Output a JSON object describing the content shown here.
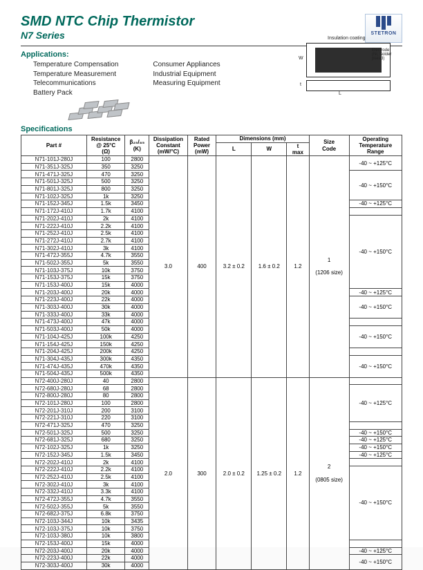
{
  "header": {
    "title": "SMD NTC Chip Thermistor",
    "subtitle": "N7 Series",
    "logo_text": "STETRON"
  },
  "applications": {
    "label": "Applications:",
    "col1": [
      "Temperature Compensation",
      "Temperature Measurement",
      "Telecommunications",
      "Battery Pack"
    ],
    "col2": [
      "Consumer Appliances",
      "Industrial Equipment",
      "Measuring Equipment"
    ]
  },
  "diagram": {
    "insulation": "Insulation coating",
    "electrode": "Electrode\n(Ni, Solder\nplated)",
    "L": "L",
    "W": "W",
    "t": "t"
  },
  "specs_label": "Specifications",
  "columns": {
    "part": "Part #",
    "res": "Resistance\n@ 25°C\n(Ω)",
    "beta": "β₂₅/₈₅\n(K)",
    "diss": "Dissipation\nConstant\n(mW/°C)",
    "power": "Rated\nPower\n(mW)",
    "dims": "Dimensions (mm)",
    "L": "L",
    "W": "W",
    "tmax": "t\nmax",
    "size": "Size\nCode",
    "range": "Operating\nTemperature\nRange"
  },
  "blocks": [
    {
      "diss": "3.0",
      "power": "400",
      "L": "3.2 ± 0.2",
      "W": "1.6 ± 0.2",
      "tmax": "1.2",
      "size": "1",
      "size_note": "(1206 size)",
      "rows": [
        {
          "p": "N71-101J-280J",
          "r": "100",
          "b": "2800",
          "range": "-40 ~ +125°C",
          "rs": 2
        },
        {
          "p": "N71-351J-325J",
          "r": "350",
          "b": "3250"
        },
        {
          "p": "N71-471J-325J",
          "r": "470",
          "b": "3250",
          "range": "-40 ~ +150°C",
          "rs": 4
        },
        {
          "p": "N71-501J-325J",
          "r": "500",
          "b": "3250"
        },
        {
          "p": "N71-801J-325J",
          "r": "800",
          "b": "3250"
        },
        {
          "p": "N71-102J-325J",
          "r": "1k",
          "b": "3250"
        },
        {
          "p": "N71-152J-345J",
          "r": "1.5k",
          "b": "3450",
          "range": "-40 ~ +125°C",
          "rs": 1
        },
        {
          "p": "N71-172J-410J",
          "r": "1.7k",
          "b": "4100",
          "range": "",
          "rs": 1
        },
        {
          "p": "N71-202J-410J",
          "r": "2k",
          "b": "4100",
          "range": "-40 ~ +150°C",
          "rs": 10
        },
        {
          "p": "N71-222J-410J",
          "r": "2.2k",
          "b": "4100"
        },
        {
          "p": "N71-252J-410J",
          "r": "2.5k",
          "b": "4100"
        },
        {
          "p": "N71-272J-410J",
          "r": "2.7k",
          "b": "4100"
        },
        {
          "p": "N71-302J-410J",
          "r": "3k",
          "b": "4100"
        },
        {
          "p": "N71-472J-355J",
          "r": "4.7k",
          "b": "3550"
        },
        {
          "p": "N71-502J-355J",
          "r": "5k",
          "b": "3550"
        },
        {
          "p": "N71-103J-375J",
          "r": "10k",
          "b": "3750"
        },
        {
          "p": "N71-153J-375J",
          "r": "15k",
          "b": "3750"
        },
        {
          "p": "N71-153J-400J",
          "r": "15k",
          "b": "4000"
        },
        {
          "p": "N71-203J-400J",
          "r": "20k",
          "b": "4000",
          "range": "-40 ~ +125°C",
          "rs": 1
        },
        {
          "p": "N71-223J-400J",
          "r": "22k",
          "b": "4000",
          "range": "-40 ~ +150°C",
          "rs": 3
        },
        {
          "p": "N71-303J-400J",
          "r": "30k",
          "b": "4000"
        },
        {
          "p": "N71-333J-400J",
          "r": "33k",
          "b": "4000"
        },
        {
          "p": "N71-473J-400J",
          "r": "47k",
          "b": "4000",
          "range": "",
          "rs": 1
        },
        {
          "p": "N71-503J-400J",
          "r": "50k",
          "b": "4000",
          "range": "-40 ~ +150°C",
          "rs": 3
        },
        {
          "p": "N71-104J-425J",
          "r": "100k",
          "b": "4250"
        },
        {
          "p": "N71-154J-425J",
          "r": "150k",
          "b": "4250"
        },
        {
          "p": "N71-204J-425J",
          "r": "200k",
          "b": "4250",
          "range": "",
          "rs": 1
        },
        {
          "p": "N71-304J-435J",
          "r": "300k",
          "b": "4350",
          "range": "-40 ~ +150°C",
          "rs": 3
        },
        {
          "p": "N71-474J-435J",
          "r": "470k",
          "b": "4350"
        },
        {
          "p": "N71-504J-435J",
          "r": "500k",
          "b": "4350"
        }
      ]
    },
    {
      "diss": "2.0",
      "power": "300",
      "L": "2.0 ± 0.2",
      "W": "1.25 ± 0.2",
      "tmax": "1.2",
      "size": "2",
      "size_note": "(0805 size)",
      "rows": [
        {
          "p": "N72-400J-280J",
          "r": "40",
          "b": "2800",
          "range": "",
          "rs": 1
        },
        {
          "p": "N72-680J-280J",
          "r": "68",
          "b": "2800",
          "range": "-40 ~ +125°C",
          "rs": 5
        },
        {
          "p": "N72-800J-280J",
          "r": "80",
          "b": "2800"
        },
        {
          "p": "N72-101J-280J",
          "r": "100",
          "b": "2800"
        },
        {
          "p": "N72-201J-310J",
          "r": "200",
          "b": "3100"
        },
        {
          "p": "N72-221J-310J",
          "r": "220",
          "b": "3100"
        },
        {
          "p": "N72-471J-325J",
          "r": "470",
          "b": "3250",
          "range": "",
          "rs": 1
        },
        {
          "p": "N72-501J-325J",
          "r": "500",
          "b": "3250",
          "range": "-40 ~ +150°C",
          "rs": 1
        },
        {
          "p": "N72-681J-325J",
          "r": "680",
          "b": "3250",
          "range": "-40 ~ +125°C",
          "rs": 1
        },
        {
          "p": "N72-102J-325J",
          "r": "1k",
          "b": "3250",
          "range": "-40 ~ +150°C",
          "rs": 1
        },
        {
          "p": "N72-152J-345J",
          "r": "1.5k",
          "b": "3450",
          "range": "-40 ~ +125°C",
          "rs": 1
        },
        {
          "p": "N72-202J-410J",
          "r": "2k",
          "b": "4100",
          "range": "",
          "rs": 1
        },
        {
          "p": "N72-222J-410J",
          "r": "2.2k",
          "b": "4100",
          "range": "-40 ~ +150°C",
          "rs": 10
        },
        {
          "p": "N72-252J-410J",
          "r": "2.5k",
          "b": "4100"
        },
        {
          "p": "N72-302J-410J",
          "r": "3k",
          "b": "4100"
        },
        {
          "p": "N72-332J-410J",
          "r": "3.3k",
          "b": "4100"
        },
        {
          "p": "N72-472J-355J",
          "r": "4.7k",
          "b": "3550"
        },
        {
          "p": "N72-502J-355J",
          "r": "5k",
          "b": "3550"
        },
        {
          "p": "N72-682J-375J",
          "r": "6.8k",
          "b": "3750"
        },
        {
          "p": "N72-103J-344J",
          "r": "10k",
          "b": "3435"
        },
        {
          "p": "N72-103J-375J",
          "r": "10k",
          "b": "3750"
        },
        {
          "p": "N72-103J-380J",
          "r": "10k",
          "b": "3800"
        },
        {
          "p": "N72-153J-400J",
          "r": "15k",
          "b": "4000",
          "range": "",
          "rs": 1
        },
        {
          "p": "N72-203J-400J",
          "r": "20k",
          "b": "4000",
          "range": "-40 ~ +125°C",
          "rs": 1
        },
        {
          "p": "N72-223J-400J",
          "r": "22k",
          "b": "4000",
          "range": "-40 ~ +150°C",
          "rs": 2
        },
        {
          "p": "N72-303J-400J",
          "r": "30k",
          "b": "4000"
        }
      ]
    }
  ]
}
